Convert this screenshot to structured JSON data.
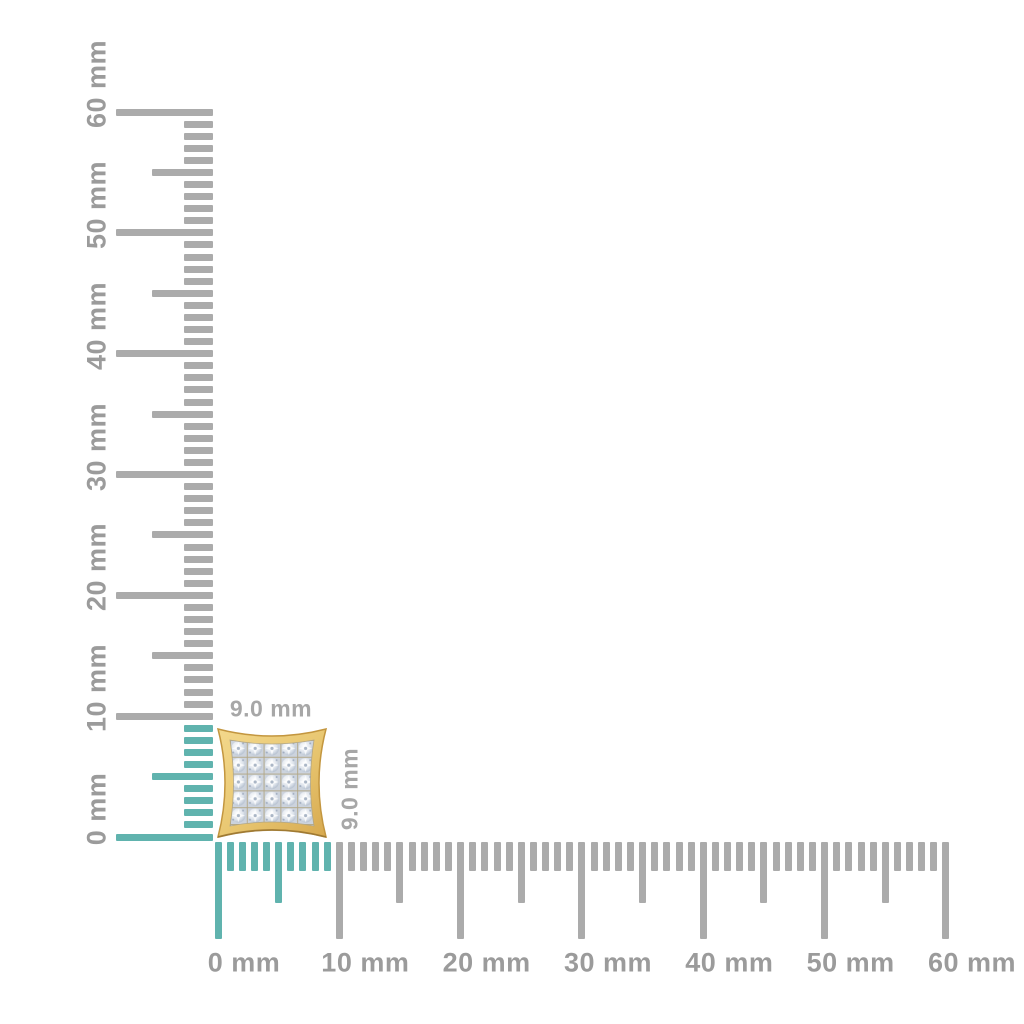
{
  "unit": "mm",
  "item": {
    "description": "gold square pave diamond stud earring",
    "width_label": "9.0 mm",
    "height_label": "9.0 mm",
    "width_mm": 9.0,
    "height_mm": 9.0
  },
  "rulers": {
    "vertical": {
      "min_mm": 0,
      "max_mm": 60,
      "minor_step_mm": 1,
      "medium_step_mm": 5,
      "major_step_mm": 10,
      "major_labels": [
        "0 mm",
        "10 mm",
        "20 mm",
        "30 mm",
        "40 mm",
        "50 mm",
        "60 mm"
      ],
      "highlight_from_mm": 0,
      "highlight_to_mm": 9
    },
    "horizontal": {
      "min_mm": 0,
      "max_mm": 60,
      "minor_step_mm": 1,
      "medium_step_mm": 5,
      "major_step_mm": 10,
      "major_labels": [
        "0 mm",
        "10 mm",
        "20 mm",
        "30 mm",
        "40 mm",
        "50 mm",
        "60 mm"
      ],
      "highlight_from_mm": 0,
      "highlight_to_mm": 9
    }
  },
  "colors": {
    "background": "#ffffff",
    "tick_gray": "#ababab",
    "tick_highlight_teal": "#60b3ae",
    "ruler_label_gray": "#9b9b9b",
    "dimension_label_gray": "#a7a7a7",
    "gold": "#e9c873",
    "gold_dark": "#c3963f",
    "pave_silver": "#ccd3dd"
  }
}
